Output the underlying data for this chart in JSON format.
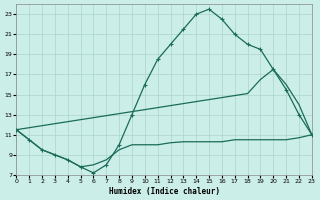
{
  "xlabel": "Humidex (Indice chaleur)",
  "bg_color": "#cceee8",
  "grid_color": "#aad4cc",
  "line_color": "#1a6b5a",
  "xlim": [
    0,
    23
  ],
  "ylim": [
    7,
    24
  ],
  "yticks": [
    7,
    9,
    11,
    13,
    15,
    17,
    19,
    21,
    23
  ],
  "xticks": [
    0,
    1,
    2,
    3,
    4,
    5,
    6,
    7,
    8,
    9,
    10,
    11,
    12,
    13,
    14,
    15,
    16,
    17,
    18,
    19,
    20,
    21,
    22,
    23
  ],
  "curve1_x": [
    0,
    1,
    2,
    3,
    4,
    5,
    6,
    7,
    8,
    9,
    10,
    11,
    12,
    13,
    14,
    15,
    16,
    17,
    18,
    19,
    20,
    21,
    22,
    23
  ],
  "curve1_y": [
    11.5,
    10.5,
    9.5,
    9.0,
    8.5,
    7.8,
    7.2,
    8.0,
    10.0,
    13.0,
    16.0,
    18.5,
    20.0,
    21.5,
    23.0,
    23.5,
    22.5,
    21.0,
    20.0,
    19.5,
    17.5,
    15.5,
    13.0,
    11.0
  ],
  "curve2_x": [
    0,
    1,
    2,
    3,
    4,
    5,
    6,
    7,
    8,
    9,
    10,
    11,
    12,
    13,
    14,
    15,
    16,
    17,
    18,
    19,
    20,
    21,
    22,
    23
  ],
  "curve2_y": [
    11.5,
    11.7,
    11.9,
    12.1,
    12.3,
    12.5,
    12.7,
    12.9,
    13.1,
    13.3,
    13.5,
    13.7,
    13.9,
    14.1,
    14.3,
    14.5,
    14.7,
    14.9,
    15.1,
    16.5,
    17.5,
    16.0,
    14.0,
    11.0
  ],
  "curve3_x": [
    0,
    1,
    2,
    3,
    4,
    5,
    6,
    7,
    8,
    9,
    10,
    11,
    12,
    13,
    14,
    15,
    16,
    17,
    18,
    19,
    20,
    21,
    22,
    23
  ],
  "curve3_y": [
    11.5,
    10.5,
    9.5,
    9.0,
    8.5,
    7.8,
    8.0,
    8.5,
    9.5,
    10.0,
    10.0,
    10.0,
    10.2,
    10.3,
    10.3,
    10.3,
    10.3,
    10.5,
    10.5,
    10.5,
    10.5,
    10.5,
    10.7,
    11.0
  ]
}
